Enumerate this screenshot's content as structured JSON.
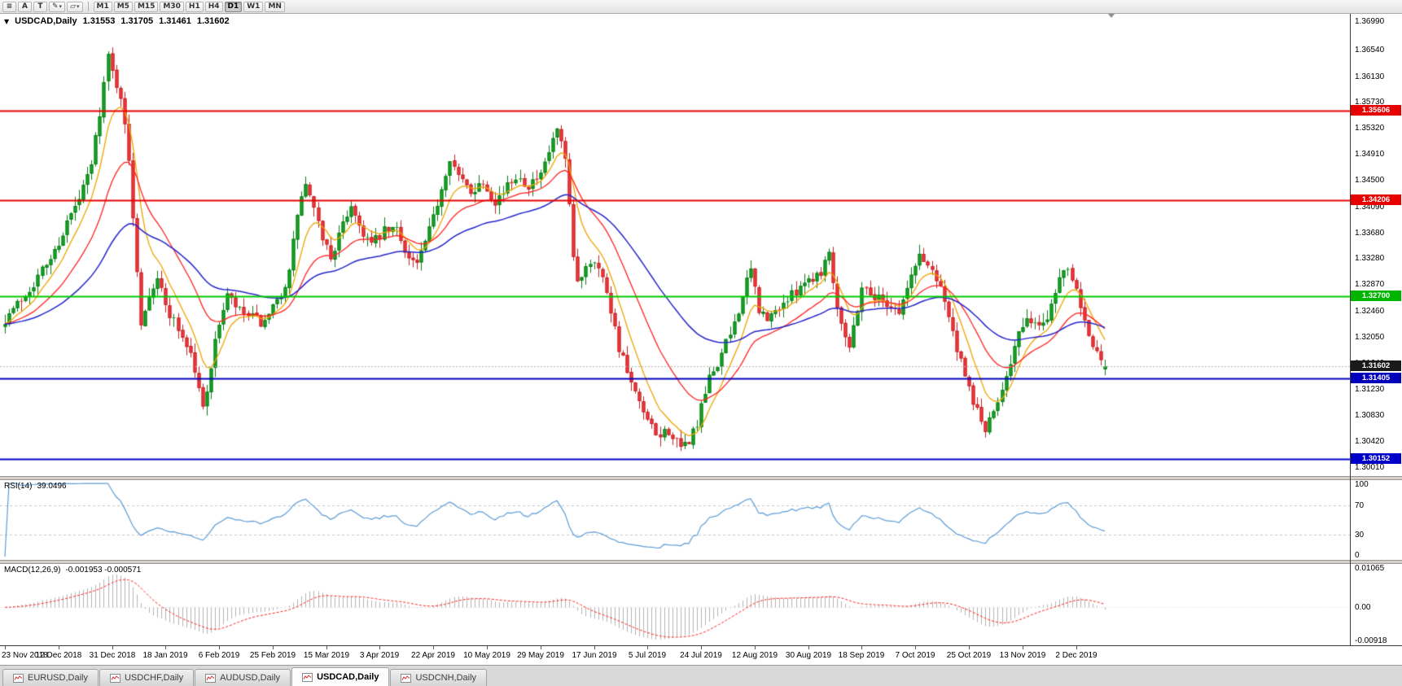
{
  "toolbar": {
    "tools": [
      {
        "name": "charts-menu",
        "glyph": "≡",
        "caret": false
      },
      {
        "name": "font-label",
        "glyph": "A",
        "caret": false
      },
      {
        "name": "text-tool",
        "glyph": "T",
        "caret": false
      },
      {
        "name": "pencil-draw-tool",
        "glyph": "✎",
        "caret": true
      },
      {
        "name": "shapes-tool",
        "glyph": "▱",
        "caret": true
      }
    ],
    "timeframes": [
      "M1",
      "M5",
      "M15",
      "M30",
      "H1",
      "H4",
      "D1",
      "W1",
      "MN"
    ],
    "active_timeframe": "D1"
  },
  "chart": {
    "symbol": "USDCAD,Daily",
    "open": "1.31553",
    "high": "1.31705",
    "low": "1.31461",
    "close": "1.31602",
    "price_axis_labels": [
      "1.36990",
      "1.36540",
      "1.36130",
      "1.35730",
      "1.35320",
      "1.34910",
      "1.34500",
      "1.34090",
      "1.33680",
      "1.33280",
      "1.32870",
      "1.32460",
      "1.32050",
      "1.31640",
      "1.31230",
      "1.30830",
      "1.30420",
      "1.30010"
    ]
  },
  "chart_data": {
    "type": "candlestick",
    "title": "USDCAD Daily",
    "bars": 268,
    "seed": 7,
    "price_axis": {
      "max": 1.3699,
      "min": 1.3001
    },
    "price_path": [
      [
        0,
        1.3235
      ],
      [
        4,
        1.3265
      ],
      [
        8,
        1.33
      ],
      [
        12,
        1.334
      ],
      [
        15,
        1.3385
      ],
      [
        18,
        1.342
      ],
      [
        21,
        1.3475
      ],
      [
        23,
        1.356
      ],
      [
        25,
        1.3645
      ],
      [
        26,
        1.362
      ],
      [
        28,
        1.3585
      ],
      [
        30,
        1.348
      ],
      [
        33,
        1.323
      ],
      [
        35,
        1.3275
      ],
      [
        37,
        1.33
      ],
      [
        39,
        1.3255
      ],
      [
        42,
        1.322
      ],
      [
        45,
        1.318
      ],
      [
        48,
        1.3095
      ],
      [
        50,
        1.316
      ],
      [
        52,
        1.323
      ],
      [
        54,
        1.327
      ],
      [
        57,
        1.3245
      ],
      [
        60,
        1.3235
      ],
      [
        63,
        1.3225
      ],
      [
        66,
        1.326
      ],
      [
        69,
        1.3305
      ],
      [
        71,
        1.34
      ],
      [
        73,
        1.3445
      ],
      [
        76,
        1.338
      ],
      [
        79,
        1.333
      ],
      [
        82,
        1.338
      ],
      [
        84,
        1.3415
      ],
      [
        86,
        1.338
      ],
      [
        89,
        1.335
      ],
      [
        92,
        1.337
      ],
      [
        95,
        1.3375
      ],
      [
        98,
        1.333
      ],
      [
        100,
        1.332
      ],
      [
        103,
        1.337
      ],
      [
        106,
        1.344
      ],
      [
        108,
        1.349
      ],
      [
        110,
        1.3455
      ],
      [
        113,
        1.3435
      ],
      [
        116,
        1.345
      ],
      [
        119,
        1.342
      ],
      [
        122,
        1.344
      ],
      [
        124,
        1.346
      ],
      [
        127,
        1.3445
      ],
      [
        130,
        1.3455
      ],
      [
        132,
        1.3495
      ],
      [
        134,
        1.353
      ],
      [
        136,
        1.348
      ],
      [
        138,
        1.333
      ],
      [
        139,
        1.329
      ],
      [
        141,
        1.332
      ],
      [
        143,
        1.333
      ],
      [
        146,
        1.328
      ],
      [
        149,
        1.319
      ],
      [
        152,
        1.313
      ],
      [
        155,
        1.3085
      ],
      [
        158,
        1.305
      ],
      [
        161,
        1.306
      ],
      [
        164,
        1.3028
      ],
      [
        166,
        1.3045
      ],
      [
        168,
        1.307
      ],
      [
        171,
        1.314
      ],
      [
        173,
        1.3165
      ],
      [
        176,
        1.321
      ],
      [
        179,
        1.327
      ],
      [
        181,
        1.331
      ],
      [
        183,
        1.325
      ],
      [
        185,
        1.323
      ],
      [
        188,
        1.3255
      ],
      [
        191,
        1.327
      ],
      [
        193,
        1.329
      ],
      [
        196,
        1.33
      ],
      [
        198,
        1.331
      ],
      [
        200,
        1.334
      ],
      [
        202,
        1.3255
      ],
      [
        205,
        1.319
      ],
      [
        208,
        1.3285
      ],
      [
        211,
        1.327
      ],
      [
        214,
        1.326
      ],
      [
        217,
        1.3245
      ],
      [
        220,
        1.33
      ],
      [
        222,
        1.3335
      ],
      [
        225,
        1.331
      ],
      [
        227,
        1.329
      ],
      [
        230,
        1.321
      ],
      [
        233,
        1.314
      ],
      [
        236,
        1.309
      ],
      [
        238,
        1.306
      ],
      [
        240,
        1.3085
      ],
      [
        243,
        1.315
      ],
      [
        246,
        1.321
      ],
      [
        249,
        1.3235
      ],
      [
        251,
        1.322
      ],
      [
        253,
        1.324
      ],
      [
        256,
        1.33
      ],
      [
        258,
        1.332
      ],
      [
        260,
        1.3285
      ],
      [
        262,
        1.3235
      ],
      [
        264,
        1.319
      ],
      [
        266,
        1.3168
      ],
      [
        267,
        1.316
      ]
    ],
    "levels": [
      {
        "label": "1.35606",
        "price": 1.35606,
        "line": "#e60000",
        "badge": "#e60000",
        "width": 2,
        "dash": false
      },
      {
        "label": "1.34206",
        "price": 1.34206,
        "line": "#e60000",
        "badge": "#e60000",
        "width": 2,
        "dash": false
      },
      {
        "label": "1.32700",
        "price": 1.327,
        "line": "#00ca00",
        "badge": "#00b400",
        "width": 2,
        "dash": false
      },
      {
        "label": "1.31602",
        "price": 1.31602,
        "line": "#b0b0b0",
        "badge": "#1a1a1a",
        "width": 1,
        "dash": true
      },
      {
        "label": "1.31405",
        "price": 1.31405,
        "line": "#0000bb",
        "badge": "#0000bb",
        "width": 2,
        "dash": false
      },
      {
        "label": "1.30152",
        "price": 1.30152,
        "line": "#0000c8",
        "badge": "#0000c8",
        "width": 2,
        "dash": false
      }
    ],
    "dates": [
      "23 Nov 2018",
      "12 Dec 2018",
      "31 Dec 2018",
      "18 Jan 2019",
      "6 Feb 2019",
      "25 Feb 2019",
      "15 Mar 2019",
      "3 Apr 2019",
      "22 Apr 2019",
      "10 May 2019",
      "29 May 2019",
      "17 Jun 2019",
      "5 Jul 2019",
      "24 Jul 2019",
      "12 Aug 2019",
      "30 Aug 2019",
      "18 Sep 2019",
      "7 Oct 2019",
      "25 Oct 2019",
      "13 Nov 2019",
      "2 Dec 2019"
    ],
    "moving_averages": [
      {
        "name": "fast",
        "period": 8,
        "color": "#eda500"
      },
      {
        "name": "mid",
        "period": 21,
        "color": "#ff2222"
      },
      {
        "name": "slow",
        "period": 50,
        "color": "#2424cc"
      }
    ]
  },
  "rsi": {
    "label": "RSI(14)",
    "value": "39.0496",
    "levels": [
      70,
      30
    ],
    "axis": [
      {
        "label": "100",
        "v": 100
      },
      {
        "label": "70",
        "v": 70
      },
      {
        "label": "30",
        "v": 30
      },
      {
        "label": "0",
        "v": 0
      }
    ]
  },
  "macd": {
    "label": "MACD(12,26,9)",
    "values": "-0.001953 -0.000571",
    "max": 0.01065,
    "min": -0.00918,
    "axis": [
      {
        "label": "0.01065",
        "v": 0.01065
      },
      {
        "label": "0.00",
        "v": 0
      },
      {
        "label": "-0.00918",
        "v": -0.00918
      }
    ]
  },
  "tabs": {
    "items": [
      "EURUSD,Daily",
      "USDCHF,Daily",
      "AUDUSD,Daily",
      "USDCAD,Daily",
      "USDCNH,Daily"
    ],
    "active": "USDCAD,Daily"
  },
  "colors": {
    "candle_up": "#17a826",
    "candle_up_dark": "#0b7a17",
    "candle_down": "#f63b3e",
    "candle_down_dark": "#c02124",
    "ma_fast": "#eda500",
    "ma_mid": "#ff2222",
    "ma_slow": "#2424cc",
    "rsi_line": "#5b9bd5",
    "macd_hist": "#b3b3b3",
    "macd_signal": "#ff2222"
  }
}
